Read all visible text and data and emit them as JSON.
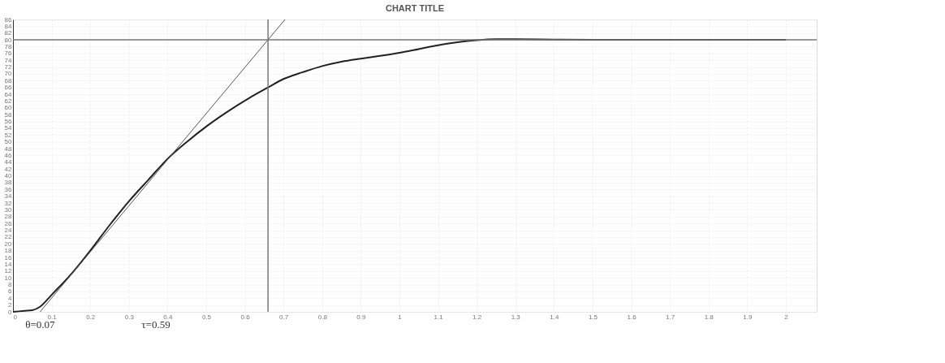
{
  "chart_data": {
    "type": "line",
    "title": "CHART TITLE",
    "xlim": [
      0,
      2.08
    ],
    "xticks": [
      0,
      0.1,
      0.2,
      0.3,
      0.4,
      0.5,
      0.6,
      0.7,
      0.8,
      0.9,
      1,
      1.1,
      1.2,
      1.3,
      1.4,
      1.5,
      1.6,
      1.7,
      1.8,
      1.9,
      2
    ],
    "ylim": [
      0,
      86
    ],
    "yticks": [
      0,
      2,
      4,
      6,
      8,
      10,
      12,
      14,
      16,
      18,
      20,
      22,
      24,
      26,
      28,
      30,
      32,
      34,
      36,
      38,
      40,
      42,
      44,
      46,
      48,
      50,
      52,
      54,
      56,
      58,
      60,
      62,
      64,
      66,
      68,
      70,
      72,
      74,
      76,
      78,
      80,
      82,
      84,
      86
    ],
    "grid": true,
    "marker": "none",
    "line_style": "solid",
    "series": [
      {
        "color": "#222222",
        "x": [
          0,
          0.03,
          0.05,
          0.07,
          0.1,
          0.15,
          0.2,
          0.25,
          0.3,
          0.35,
          0.4,
          0.45,
          0.5,
          0.55,
          0.61,
          0.66,
          0.7,
          0.75,
          0.8,
          0.85,
          0.9,
          0.95,
          1.0,
          1.05,
          1.1,
          1.15,
          1.2,
          1.25,
          1.3,
          1.4,
          1.5,
          2.0
        ],
        "values": [
          0,
          0.3,
          0.5,
          1.5,
          5,
          11,
          18,
          25.5,
          32.5,
          38.8,
          45,
          50,
          54.5,
          58.5,
          62.8,
          66,
          68.5,
          70.5,
          72.3,
          73.6,
          74.5,
          75.3,
          76.2,
          77.3,
          78.4,
          79.3,
          79.9,
          80.2,
          80.2,
          80.1,
          80,
          80
        ]
      },
      {
        "type": "line",
        "color": "#555555",
        "x": [
          0.07,
          0.704
        ],
        "values": [
          0,
          86
        ]
      }
    ],
    "ref_lines": [
      {
        "axis": "y",
        "value": 80,
        "color": "#777777"
      },
      {
        "axis": "x",
        "value": 0.66,
        "color": "#777777"
      }
    ],
    "annotations": [
      {
        "text": "θ=0.07",
        "x": 0.07,
        "y": 0
      },
      "τ=0.59"
    ]
  }
}
